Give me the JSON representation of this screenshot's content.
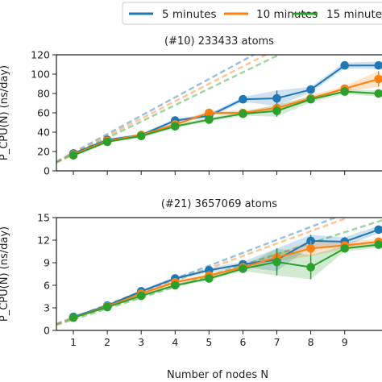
{
  "chart_data": {
    "type": "line",
    "legend": {
      "placement": "top",
      "entries": [
        "5 minutes",
        "10 minutes",
        "15 minutes"
      ]
    },
    "colors": {
      "5 minutes": "#1f77b4",
      "10 minutes": "#ff7f0e",
      "15 minutes": "#2ca02c"
    },
    "xlabel": "Number of nodes N",
    "x_ticks": [
      1,
      2,
      3,
      4,
      5,
      6,
      7,
      8,
      9
    ],
    "xlim": [
      0.5,
      10.1
    ],
    "grid": false,
    "panels": [
      {
        "title": "(#10) 233433 atoms",
        "ylabel": "P_CPU(N) (ns/day)",
        "ylim": [
          0,
          120
        ],
        "y_ticks": [
          0,
          20,
          40,
          60,
          80,
          100,
          120
        ],
        "ideal_slopes": [
          19,
          18,
          17
        ],
        "series": [
          {
            "name": "5 minutes",
            "x": [
              1,
              2,
              3,
              4,
              5,
              6,
              7,
              8,
              9,
              10
            ],
            "y": [
              18,
              32,
              37,
              52,
              57,
              74,
              75,
              84,
              109,
              109
            ],
            "band": [
              1,
              1.5,
              1.5,
              2,
              2,
              2.5,
              8,
              3,
              3,
              4
            ]
          },
          {
            "name": "10 minutes",
            "x": [
              1,
              2,
              3,
              4,
              5,
              6,
              7,
              8,
              9,
              10
            ],
            "y": [
              17,
              31,
              37,
              48,
              60,
              60,
              65,
              75,
              85,
              95
            ],
            "band": [
              1,
              1,
              1.5,
              2,
              2,
              2.5,
              2.5,
              3,
              3,
              8
            ]
          },
          {
            "name": "15 minutes",
            "x": [
              1,
              2,
              3,
              4,
              5,
              6,
              7,
              8,
              9,
              10
            ],
            "y": [
              16,
              30,
              36,
              46,
              53,
              59,
              62,
              74,
              82,
              80
            ],
            "band": [
              1,
              1,
              1.5,
              2,
              2,
              2,
              6,
              3,
              2.5,
              3
            ]
          }
        ]
      },
      {
        "title": "(#21) 3657069 atoms",
        "ylabel": "P_CPU(N) (ns/day)",
        "ylim": [
          0,
          15
        ],
        "y_ticks": [
          0,
          3,
          6,
          9,
          12,
          15
        ],
        "ideal_slopes": [
          1.72,
          1.65,
          1.45
        ],
        "series": [
          {
            "name": "5 minutes",
            "x": [
              1,
              2,
              3,
              4,
              5,
              6,
              7,
              8,
              9,
              10
            ],
            "y": [
              1.8,
              3.3,
              5.2,
              6.9,
              8.0,
              8.8,
              9.4,
              11.9,
              11.8,
              13.4
            ],
            "band": [
              0.1,
              0.15,
              0.2,
              0.25,
              0.3,
              0.35,
              1.5,
              0.8,
              0.6,
              0.5
            ]
          },
          {
            "name": "10 minutes",
            "x": [
              1,
              2,
              3,
              4,
              5,
              6,
              7,
              8,
              9,
              10
            ],
            "y": [
              1.7,
              3.2,
              4.9,
              6.4,
              7.3,
              8.4,
              9.7,
              10.9,
              11.3,
              11.8
            ],
            "band": [
              0.1,
              0.15,
              0.2,
              0.2,
              0.25,
              0.3,
              0.5,
              1.0,
              0.5,
              0.4
            ]
          },
          {
            "name": "15 minutes",
            "x": [
              1,
              2,
              3,
              4,
              5,
              6,
              7,
              8,
              9,
              10
            ],
            "y": [
              1.7,
              3.1,
              4.6,
              6.0,
              6.9,
              8.2,
              9.1,
              8.4,
              10.9,
              11.4
            ],
            "band": [
              0.1,
              0.15,
              0.2,
              0.2,
              0.25,
              0.3,
              1.8,
              1.6,
              0.4,
              0.4
            ]
          }
        ]
      }
    ]
  }
}
